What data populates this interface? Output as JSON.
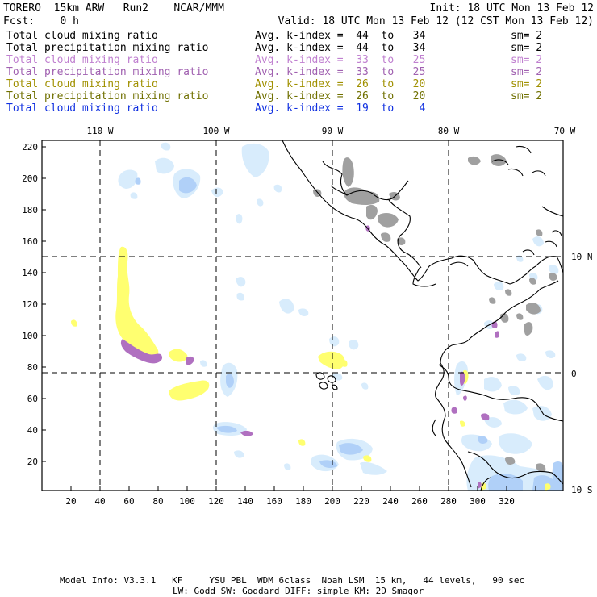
{
  "header": {
    "model": "TORERO  15km ARW   Run2    NCAR/MMM",
    "init": "Init: 18 UTC Mon 13 Feb 12",
    "fcst": "Fcst:    0 h",
    "valid": "Valid: 18 UTC Mon 13 Feb 12 (12 CST Mon 13 Feb 12)"
  },
  "legend": [
    {
      "field": "Total cloud mixing ratio",
      "kindex": "Avg. k-index =  44  to   34",
      "sm": "sm= 2",
      "color": "#000000"
    },
    {
      "field": "Total precipitation mixing ratio",
      "kindex": "Avg. k-index =  44  to   34",
      "sm": "sm= 2",
      "color": "#000000"
    },
    {
      "field": "Total cloud mixing ratio",
      "kindex": "Avg. k-index =  33  to   25",
      "sm": "sm= 2",
      "color": "#c080d0"
    },
    {
      "field": "Total precipitation mixing ratio",
      "kindex": "Avg. k-index =  33  to   25",
      "sm": "sm= 2",
      "color": "#a060b0"
    },
    {
      "field": "Total cloud mixing ratio",
      "kindex": "Avg. k-index =  26  to   20",
      "sm": "sm= 2",
      "color": "#a09000"
    },
    {
      "field": "Total precipitation mixing ratio",
      "kindex": "Avg. k-index =  26  to   20",
      "sm": "sm= 2",
      "color": "#707000"
    },
    {
      "field": "Total cloud mixing ratio",
      "kindex": "Avg. k-index =  19  to    4",
      "sm": "",
      "color": "#1030e0"
    }
  ],
  "map": {
    "lon_labels": [
      "110 W",
      "100 W",
      "90 W",
      "80 W",
      "70 W"
    ],
    "lat_labels": [
      "10 N",
      "0",
      "10 S"
    ],
    "y_ticks": [
      "220",
      "200",
      "180",
      "160",
      "140",
      "120",
      "100",
      "80",
      "60",
      "40",
      "20"
    ],
    "x_ticks": [
      "20",
      "40",
      "60",
      "80",
      "100",
      "120",
      "140",
      "160",
      "180",
      "200",
      "220",
      "240",
      "260",
      "280",
      "300",
      "320"
    ],
    "colors": {
      "cloud_light": "#d8ecfc",
      "cloud_blue": "#b8d8fa",
      "cloud_deep": "#a8c8f4",
      "yellow": "#ffff70",
      "purple": "#b070c0",
      "gray": "#a0a0a0"
    }
  },
  "footer": {
    "line1": "Model Info: V3.3.1   KF     YSU PBL  WDM 6class  Noah LSM  15 km,   44 levels,   90 sec",
    "line2": "LW: Godd SW: Goddard DIFF: simple KM: 2D Smagor"
  }
}
